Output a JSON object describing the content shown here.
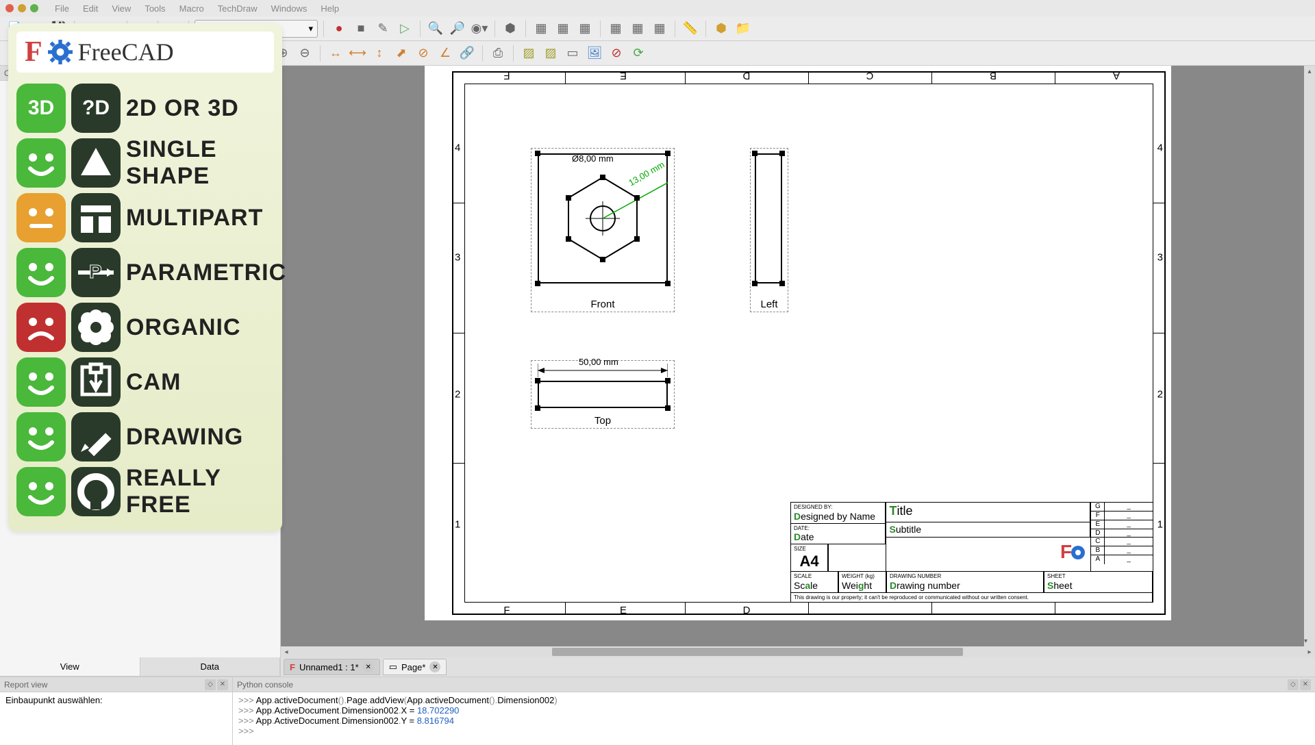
{
  "traffic_lights": [
    "#e06050",
    "#d0a030",
    "#60b050"
  ],
  "menu": [
    "File",
    "Edit",
    "View",
    "Tools",
    "Macro",
    "TechDraw",
    "Windows",
    "Help"
  ],
  "workbench": "TechDraw",
  "logo": {
    "f": "F",
    "text": "FreeCAD",
    "gear_color": "#2a6fd0"
  },
  "features": [
    {
      "face_bg": "#4ab83a",
      "face": "happy",
      "icon_text": "3D",
      "icon_alt": "?D",
      "label": "2D OR 3D"
    },
    {
      "face_bg": "#4ab83a",
      "face": "happy",
      "icon": "triangle",
      "label": "SINGLE SHAPE"
    },
    {
      "face_bg": "#e8a030",
      "face": "neutral",
      "icon": "table",
      "label": "MULTIPART"
    },
    {
      "face_bg": "#4ab83a",
      "face": "happy",
      "icon": "param",
      "label": "PARAMETRIC"
    },
    {
      "face_bg": "#c03030",
      "face": "sad",
      "icon": "flower",
      "label": "ORGANIC"
    },
    {
      "face_bg": "#4ab83a",
      "face": "happy",
      "icon": "download",
      "label": "CAM"
    },
    {
      "face_bg": "#4ab83a",
      "face": "happy",
      "icon": "pencil",
      "label": "DRAWING"
    },
    {
      "face_bg": "#4ab83a",
      "face": "happy",
      "icon": "opensource",
      "label": "REALLY FREE"
    }
  ],
  "combo_view": {
    "title": "Combo View",
    "tabs": [
      "View",
      "Data"
    ],
    "active": 0
  },
  "drawing": {
    "cols_top": [
      "F",
      "E",
      "D",
      "C",
      "B",
      "A"
    ],
    "cols_bot": [
      "F",
      "E",
      "D"
    ],
    "rows": [
      "4",
      "3",
      "2",
      "1"
    ],
    "views": {
      "front": {
        "label": "Front",
        "dim_phi": "Ø8,00  mm",
        "dim_r": "13,00  mm"
      },
      "left": {
        "label": "Left"
      },
      "top": {
        "label": "Top",
        "dim_w": "50,00  mm"
      }
    },
    "title_block": {
      "designed_by_lbl": "DESIGNED BY:",
      "designed_by": "Designed by Name",
      "date_lbl": "DATE:",
      "date": "Date",
      "size_lbl": "SIZE",
      "size": "A4",
      "title": "Title",
      "subtitle": "Subtitle",
      "scale_lbl": "SCALE",
      "scale": "Scale",
      "weight_lbl": "WEIGHT (kg)",
      "weight": "Weight",
      "drawnum_lbl": "DRAWING NUMBER",
      "drawnum": "Drawing number",
      "sheet_lbl": "SHEET",
      "sheet": "Sheet",
      "note": "This drawing is our property; it can't be reproduced or communicated without our written consent.",
      "rev_letters": [
        "G",
        "F",
        "E",
        "D",
        "C",
        "B",
        "A"
      ],
      "rev_dash": "_"
    }
  },
  "doc_tabs": [
    {
      "label": "Unnamed1 : 1*",
      "icon": "fc"
    },
    {
      "label": "Page*",
      "icon": "page"
    }
  ],
  "report": {
    "title": "Report view",
    "line": "Einbaupunkt auswählen:"
  },
  "python": {
    "title": "Python console",
    "lines": [
      {
        "prefix": ">>> ",
        "code": "App.activeDocument().Page.addView(App.activeDocument().Dimension002)"
      },
      {
        "prefix": ">>> ",
        "code_a": "App.ActiveDocument.Dimension002.X = ",
        "num": "18.702290"
      },
      {
        "prefix": ">>> ",
        "code_a": "App.ActiveDocument.Dimension002.Y = ",
        "num": "8.816794"
      },
      {
        "prefix": ">>> ",
        "code": ""
      }
    ]
  }
}
